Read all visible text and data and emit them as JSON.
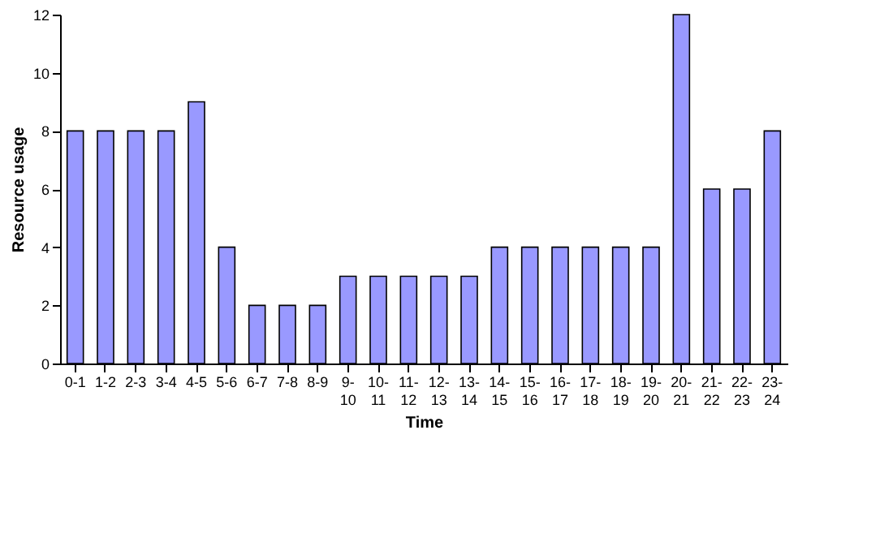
{
  "chart_data": {
    "type": "bar",
    "xlabel": "Time",
    "ylabel": "Resource usage",
    "categories": [
      "0-1",
      "1-2",
      "2-3",
      "3-4",
      "4-5",
      "5-6",
      "6-7",
      "7-8",
      "8-9",
      "9-10",
      "10-11",
      "11-12",
      "12-13",
      "13-14",
      "14-15",
      "15-16",
      "16-17",
      "17-18",
      "18-19",
      "19-20",
      "20-21",
      "21-22",
      "22-23",
      "23-24"
    ],
    "values": [
      8,
      8,
      8,
      8,
      9,
      4,
      2,
      2,
      2,
      3,
      3,
      3,
      3,
      3,
      4,
      4,
      4,
      4,
      4,
      4,
      12,
      6,
      6,
      8
    ],
    "color": "#9999ff",
    "ylim": [
      0,
      12
    ],
    "yticks": [
      0,
      2,
      4,
      6,
      8,
      10,
      12
    ],
    "grid": false
  }
}
